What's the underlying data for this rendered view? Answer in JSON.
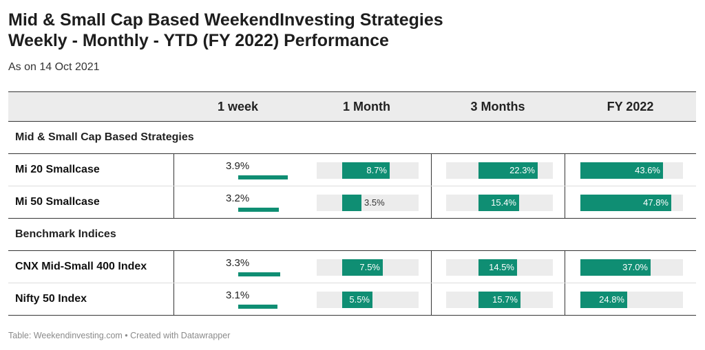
{
  "title_line1": "Mid & Small Cap Based WeekendInvesting Strategies",
  "title_line2": "Weekly - Monthly - YTD (FY 2022) Performance",
  "subtitle": "As on 14 Oct 2021",
  "footer": "Table: Weekendinvesting.com • Created with Datawrapper",
  "colors": {
    "bar": "#0f8e73",
    "track": "#ececec",
    "header_bg": "#ececec"
  },
  "chart_data": {
    "type": "table",
    "columns": [
      "",
      "1 week",
      "1 Month",
      "3 Months",
      "FY 2022"
    ],
    "groups": [
      {
        "label": "Mid & Small Cap Based Strategies",
        "rows": [
          {
            "name": "Mi 20 Smallcase",
            "values": [
              3.9,
              8.7,
              22.3,
              43.6
            ],
            "labels": [
              "3.9%",
              "8.7%",
              "22.3%",
              "43.6%"
            ]
          },
          {
            "name": "Mi 50 Smallcase",
            "values": [
              3.2,
              3.5,
              15.4,
              47.8
            ],
            "labels": [
              "3.2%",
              "3.5%",
              "15.4%",
              "47.8%"
            ]
          }
        ]
      },
      {
        "label": "Benchmark Indices",
        "rows": [
          {
            "name": "CNX Mid-Small 400 Index",
            "values": [
              3.3,
              7.5,
              14.5,
              37.0
            ],
            "labels": [
              "3.3%",
              "7.5%",
              "14.5%",
              "37.0%"
            ]
          },
          {
            "name": "Nifty 50 Index",
            "values": [
              3.1,
              5.5,
              15.7,
              24.8
            ],
            "labels": [
              "3.1%",
              "5.5%",
              "15.7%",
              "24.8%"
            ]
          }
        ]
      }
    ],
    "column_max": [
      3.9,
      14.0,
      28.0,
      54.0
    ]
  }
}
